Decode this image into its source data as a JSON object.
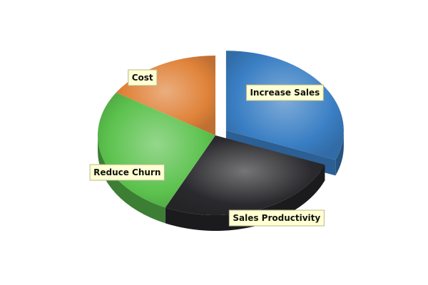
{
  "chart_data": {
    "type": "pie",
    "three_d": true,
    "legend": "none",
    "exploded": "Increase Sales",
    "slices": [
      {
        "label": "Increase Sales",
        "value": 31,
        "color": "#3a7fc4"
      },
      {
        "label": "Sales Productivity",
        "value": 26,
        "color": "#2a2a2e"
      },
      {
        "label": "Reduce Churn",
        "value": 27,
        "color": "#5cc24e"
      },
      {
        "label": "Cost",
        "value": 16,
        "color": "#e0833a"
      }
    ]
  }
}
